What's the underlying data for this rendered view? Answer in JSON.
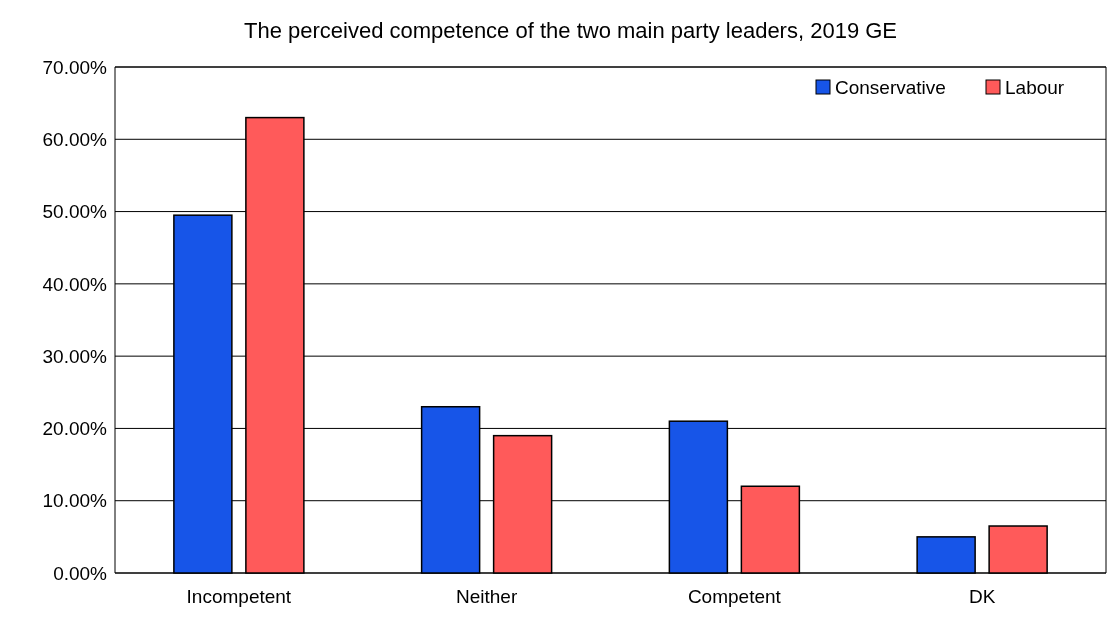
{
  "chart_data": {
    "type": "bar",
    "title": "The perceived competence of the two main party leaders, 2019 GE",
    "categories": [
      "Incompetent",
      "Neither",
      "Competent",
      "DK"
    ],
    "series": [
      {
        "name": "Conservative",
        "color": "#1755e8",
        "values": [
          49.5,
          23,
          21,
          5
        ]
      },
      {
        "name": "Labour",
        "color": "#ff5a5a",
        "values": [
          63,
          19,
          12,
          6.5
        ]
      }
    ],
    "ylim": [
      0,
      70
    ],
    "yticks": [
      {
        "value": 0,
        "label": "0.00%"
      },
      {
        "value": 10,
        "label": "10.00%"
      },
      {
        "value": 20,
        "label": "20.00%"
      },
      {
        "value": 30,
        "label": "30.00%"
      },
      {
        "value": 40,
        "label": "40.00%"
      },
      {
        "value": 50,
        "label": "50.00%"
      },
      {
        "value": 60,
        "label": "60.00%"
      },
      {
        "value": 70,
        "label": "70.00%"
      }
    ],
    "grid": "y",
    "legend": "top right"
  }
}
